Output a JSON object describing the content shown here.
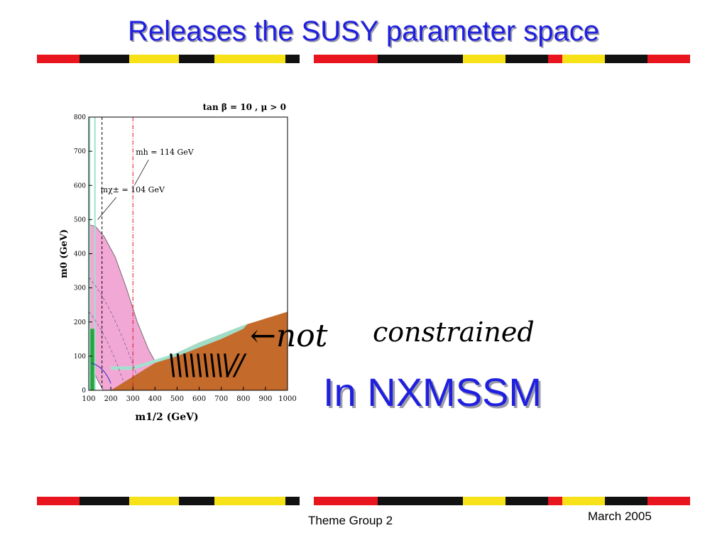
{
  "slide": {
    "title": "Releases the SUSY parameter space",
    "headline": "In  NXMSSM",
    "annotation_not": "←not",
    "annotation_constrained": "constrained",
    "annotation_hatch": "\\\\\\\\\\\\\\\\\\//",
    "footer_center": "Theme Group 2",
    "footer_right": "March 2005"
  },
  "colors": {
    "title": "#1f1fe0",
    "stripe_red": "#e8141e",
    "stripe_yellow": "#f7e21a",
    "stripe_black": "#111111",
    "pink_region": "#f2a8d4",
    "brown_region": "#c46a2a",
    "green_band": "#29a33a",
    "cyan_band": "#9fe3cf"
  },
  "chart_data": {
    "type": "area",
    "title": "tan β = 10 ,  μ > 0",
    "xlabel": "m1/2 (GeV)",
    "ylabel": "m0 (GeV)",
    "xlim": [
      100,
      1000
    ],
    "ylim": [
      0,
      800
    ],
    "xticks": [
      "100",
      "200",
      "300",
      "400",
      "500",
      "600",
      "700",
      "800",
      "900",
      "1000"
    ],
    "yticks": [
      "0",
      "100",
      "200",
      "300",
      "400",
      "500",
      "600",
      "700",
      "800"
    ],
    "annotations": [
      {
        "text": "mh = 114 GeV",
        "x": 300
      },
      {
        "text": "mχ± = 104 GeV",
        "x": 160
      }
    ],
    "regions": [
      {
        "id": "pink",
        "points": [
          [
            100,
            485
          ],
          [
            130,
            480
          ],
          [
            170,
            450
          ],
          [
            220,
            390
          ],
          [
            270,
            300
          ],
          [
            320,
            200
          ],
          [
            370,
            120
          ],
          [
            430,
            50
          ],
          [
            460,
            0
          ],
          [
            165,
            0
          ],
          [
            140,
            30
          ],
          [
            120,
            60
          ],
          [
            100,
            90
          ]
        ]
      },
      {
        "id": "brown",
        "points": [
          [
            200,
            0
          ],
          [
            300,
            40
          ],
          [
            400,
            80
          ],
          [
            500,
            110
          ],
          [
            600,
            140
          ],
          [
            700,
            165
          ],
          [
            800,
            190
          ],
          [
            900,
            210
          ],
          [
            1000,
            230
          ],
          [
            1000,
            0
          ]
        ]
      },
      {
        "id": "cyan",
        "points": [
          [
            200,
            70
          ],
          [
            300,
            70
          ],
          [
            400,
            90
          ],
          [
            500,
            110
          ],
          [
            600,
            140
          ],
          [
            700,
            165
          ],
          [
            800,
            190
          ],
          [
            820,
            195
          ],
          [
            800,
            180
          ],
          [
            700,
            150
          ],
          [
            600,
            125
          ],
          [
            500,
            100
          ],
          [
            400,
            80
          ],
          [
            300,
            60
          ],
          [
            200,
            60
          ]
        ]
      },
      {
        "id": "green",
        "points": [
          [
            104,
            0
          ],
          [
            128,
            0
          ],
          [
            128,
            180
          ],
          [
            104,
            180
          ]
        ]
      }
    ],
    "lines": [
      {
        "id": "mh-114",
        "x": 300,
        "style": "red dash-dot"
      },
      {
        "id": "mchi-104",
        "x": 160,
        "style": "black dashed"
      }
    ]
  }
}
